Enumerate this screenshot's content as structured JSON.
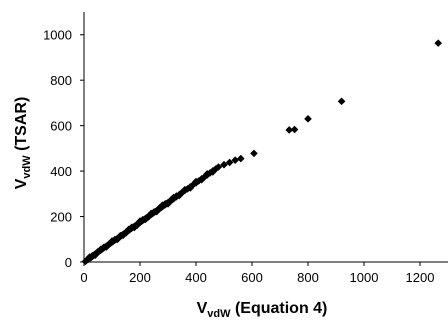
{
  "chart_data": {
    "type": "scatter",
    "title": "",
    "xlabel": {
      "main": "V",
      "sub": "vdW",
      "rest": " (Equation 4)"
    },
    "ylabel": {
      "main": "V",
      "sub": "vdW",
      "rest": " (TSAR)"
    },
    "xlim": [
      0,
      1300
    ],
    "ylim": [
      0,
      1100
    ],
    "x_ticks": [
      0,
      200,
      400,
      600,
      800,
      1000,
      1200
    ],
    "y_ticks": [
      0,
      200,
      400,
      600,
      800,
      1000
    ],
    "grid": false,
    "legend": "none",
    "marker": "diamond",
    "marker_color": "#000000",
    "series": [
      {
        "points": [
          [
            5,
            3
          ],
          [
            10,
            8
          ],
          [
            15,
            12
          ],
          [
            20,
            16
          ],
          [
            25,
            20
          ],
          [
            30,
            24
          ],
          [
            35,
            30
          ],
          [
            40,
            35
          ],
          [
            45,
            40
          ],
          [
            50,
            44
          ],
          [
            55,
            48
          ],
          [
            60,
            52
          ],
          [
            65,
            57
          ],
          [
            70,
            61
          ],
          [
            75,
            66
          ],
          [
            80,
            70
          ],
          [
            85,
            74
          ],
          [
            90,
            78
          ],
          [
            95,
            83
          ],
          [
            100,
            87
          ],
          [
            105,
            92
          ],
          [
            110,
            96
          ],
          [
            115,
            100
          ],
          [
            120,
            104
          ],
          [
            125,
            109
          ],
          [
            130,
            113
          ],
          [
            135,
            117
          ],
          [
            140,
            122
          ],
          [
            145,
            126
          ],
          [
            150,
            131
          ],
          [
            155,
            135
          ],
          [
            160,
            139
          ],
          [
            165,
            144
          ],
          [
            170,
            148
          ],
          [
            175,
            153
          ],
          [
            180,
            157
          ],
          [
            185,
            161
          ],
          [
            190,
            166
          ],
          [
            195,
            170
          ],
          [
            200,
            174
          ],
          [
            205,
            179
          ],
          [
            210,
            183
          ],
          [
            215,
            187
          ],
          [
            220,
            192
          ],
          [
            225,
            196
          ],
          [
            230,
            200
          ],
          [
            235,
            205
          ],
          [
            240,
            209
          ],
          [
            245,
            213
          ],
          [
            250,
            218
          ],
          [
            255,
            222
          ],
          [
            260,
            226
          ],
          [
            265,
            231
          ],
          [
            270,
            235
          ],
          [
            275,
            239
          ],
          [
            280,
            244
          ],
          [
            285,
            248
          ],
          [
            290,
            252
          ],
          [
            295,
            257
          ],
          [
            300,
            261
          ],
          [
            305,
            265
          ],
          [
            310,
            270
          ],
          [
            315,
            274
          ],
          [
            320,
            278
          ],
          [
            330,
            287
          ],
          [
            340,
            296
          ],
          [
            350,
            305
          ],
          [
            360,
            314
          ],
          [
            370,
            322
          ],
          [
            380,
            331
          ],
          [
            390,
            340
          ],
          [
            400,
            348
          ],
          [
            410,
            357
          ],
          [
            420,
            366
          ],
          [
            430,
            374
          ],
          [
            440,
            383
          ],
          [
            450,
            392
          ],
          [
            460,
            401
          ],
          [
            470,
            409
          ],
          [
            480,
            418
          ],
          [
            500,
            428
          ],
          [
            520,
            438
          ],
          [
            540,
            448
          ],
          [
            560,
            455
          ],
          [
            20,
            22
          ],
          [
            40,
            30
          ],
          [
            60,
            56
          ],
          [
            80,
            66
          ],
          [
            100,
            92
          ],
          [
            120,
            100
          ],
          [
            140,
            118
          ],
          [
            160,
            144
          ],
          [
            180,
            152
          ],
          [
            200,
            180
          ],
          [
            220,
            188
          ],
          [
            240,
            214
          ],
          [
            260,
            222
          ],
          [
            280,
            250
          ],
          [
            300,
            256
          ],
          [
            320,
            284
          ],
          [
            340,
            292
          ],
          [
            360,
            318
          ],
          [
            380,
            326
          ],
          [
            400,
            354
          ],
          [
            420,
            362
          ],
          [
            440,
            388
          ],
          [
            460,
            396
          ],
          [
            30,
            28
          ],
          [
            50,
            46
          ],
          [
            70,
            64
          ],
          [
            90,
            80
          ],
          [
            110,
            98
          ],
          [
            130,
            116
          ],
          [
            150,
            128
          ],
          [
            170,
            152
          ],
          [
            190,
            162
          ],
          [
            210,
            186
          ],
          [
            230,
            198
          ],
          [
            250,
            220
          ],
          [
            270,
            238
          ],
          [
            290,
            256
          ],
          [
            310,
            272
          ],
          [
            330,
            290
          ],
          [
            350,
            306
          ],
          [
            607,
            478
          ],
          [
            733,
            581
          ],
          [
            752,
            583
          ],
          [
            800,
            630
          ],
          [
            920,
            707
          ],
          [
            1265,
            963
          ]
        ]
      }
    ]
  }
}
